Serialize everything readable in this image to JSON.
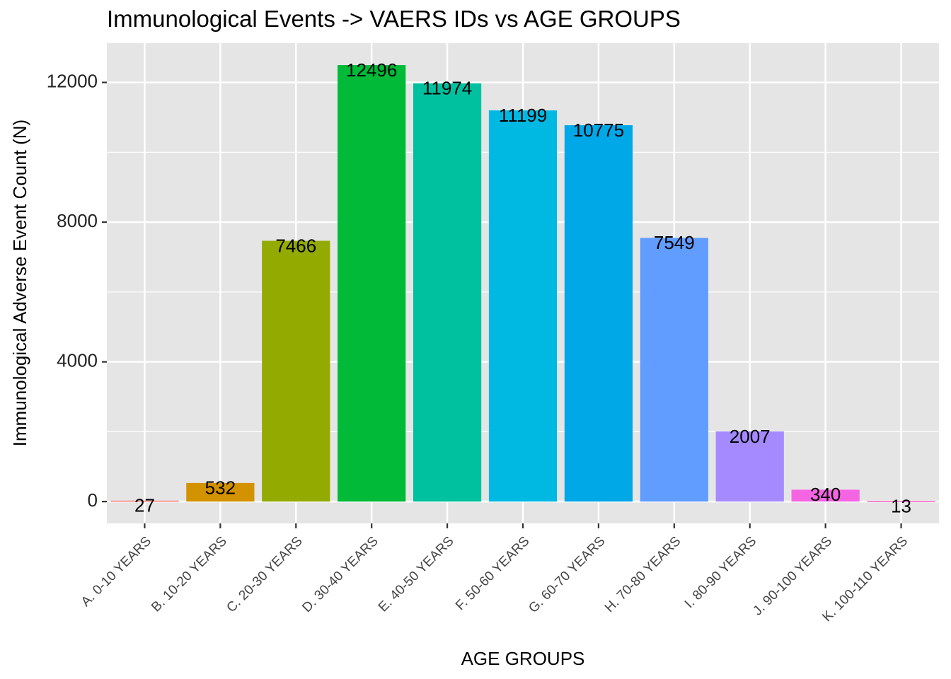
{
  "chart_data": {
    "type": "bar",
    "title": "Immunological Events -> VAERS IDs vs AGE GROUPS",
    "xlabel": "AGE GROUPS",
    "ylabel": "Immunological Adverse Event Count (N)",
    "categories": [
      "A. 0-10 YEARS",
      "B. 10-20 YEARS",
      "C. 20-30 YEARS",
      "D. 30-40 YEARS",
      "E. 40-50 YEARS",
      "F. 50-60 YEARS",
      "G. 60-70 YEARS",
      "H. 70-80 YEARS",
      "I. 80-90 YEARS",
      "J. 90-100 YEARS",
      "K. 100-110 YEARS"
    ],
    "values": [
      27,
      532,
      7466,
      12496,
      11974,
      11199,
      10775,
      7549,
      2007,
      340,
      13
    ],
    "data_labels": [
      "27",
      "532",
      "7466",
      "12496",
      "11974",
      "11199",
      "10775",
      "7549",
      "2007",
      "340",
      "13"
    ],
    "colors": [
      "#F8766D",
      "#D39200",
      "#93AA00",
      "#00BA38",
      "#00C19F",
      "#00B9E3",
      "#00A8E8",
      "#619CFF",
      "#A58AFF",
      "#F564E3",
      "#FF61C3"
    ],
    "yticks": [
      0,
      4000,
      8000,
      12000
    ],
    "ytick_labels": [
      "0",
      "4000",
      "8000",
      "12000"
    ],
    "ylim": [
      -625,
      13125
    ],
    "grid": true,
    "legend": "none",
    "panel_background": "#E5E5E5",
    "grid_color": "#FFFFFF"
  }
}
